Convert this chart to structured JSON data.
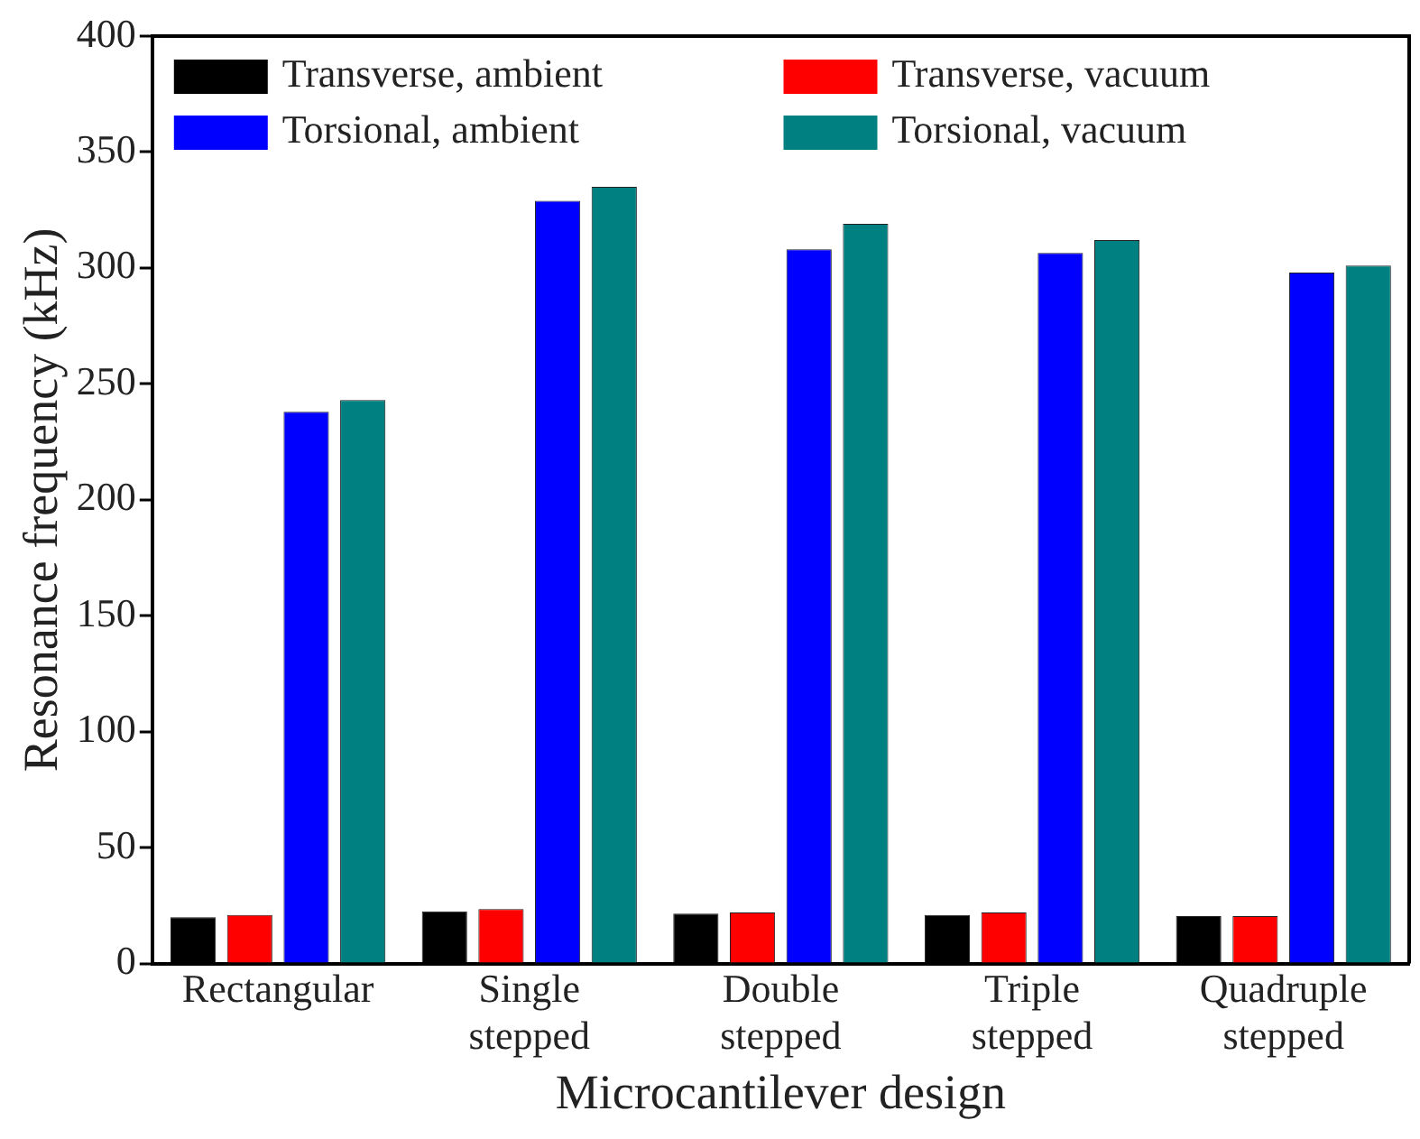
{
  "chart_data": {
    "type": "bar",
    "xlabel": "Microcantilever design",
    "ylabel": "Resonance frequency (kHz)",
    "categories": [
      "Rectangular",
      "Single stepped",
      "Double stepped",
      "Triple stepped",
      "Quadruple stepped"
    ],
    "series": [
      {
        "name": "Transverse, ambient",
        "color": "#000000",
        "values": [
          20,
          22.5,
          21.5,
          21,
          20.5
        ]
      },
      {
        "name": "Transverse, vacuum",
        "color": "#ff0000",
        "values": [
          21,
          23.5,
          22,
          22,
          20.5
        ]
      },
      {
        "name": "Torsional, ambient",
        "color": "#0000ff",
        "values": [
          238,
          329,
          308,
          306.5,
          298
        ]
      },
      {
        "name": "Torsional, vacuum",
        "color": "#008080",
        "values": [
          243,
          335,
          319,
          312,
          301
        ]
      }
    ],
    "ylim": [
      0,
      400
    ],
    "yticks": [
      0,
      50,
      100,
      150,
      200,
      250,
      300,
      350,
      400
    ],
    "grid": false,
    "legend": "top"
  }
}
